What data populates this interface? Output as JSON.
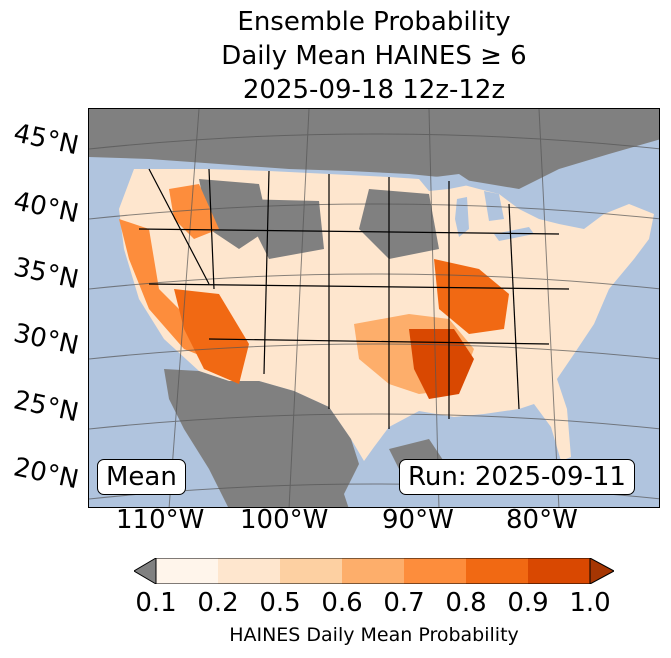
{
  "title": {
    "line1": "Ensemble Probability",
    "line2": "Daily Mean HAINES ≥ 6",
    "line3": "2025-09-18 12z-12z"
  },
  "map": {
    "lat_labels": [
      "45°N",
      "40°N",
      "35°N",
      "30°N",
      "25°N",
      "20°N"
    ],
    "lon_labels": [
      "110°W",
      "100°W",
      "90°W",
      "80°W"
    ],
    "stat_label": "Mean",
    "run_label": "Run: 2025-09-11",
    "colors": {
      "water": "#b0c4de",
      "no_data": "#808080",
      "borders": "#000000"
    }
  },
  "colorbar": {
    "label": "HAINES Daily Mean Probability",
    "ticks": [
      "0.1",
      "0.2",
      "0.5",
      "0.6",
      "0.7",
      "0.8",
      "0.9",
      "1.0"
    ],
    "under_color": "#808080",
    "colors": [
      "#fff5eb",
      "#fee6ce",
      "#fdd0a2",
      "#fdae6b",
      "#fd8d3c",
      "#f16913",
      "#d94801",
      "#a63603"
    ]
  }
}
